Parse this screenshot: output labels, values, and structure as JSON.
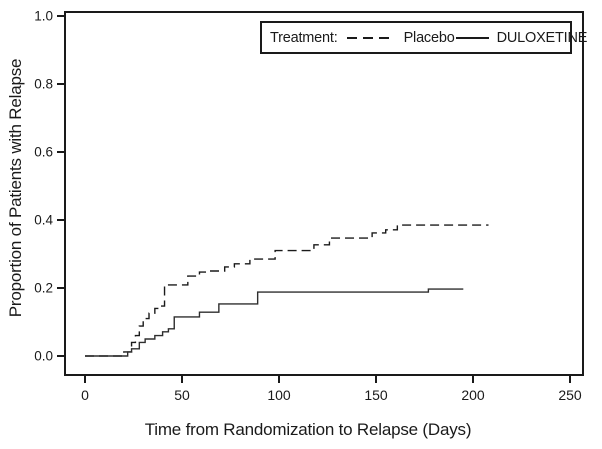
{
  "figure": {
    "background": "#ffffff",
    "axis_color": "#1a1a1a",
    "curve_color": "#222222"
  },
  "chart_data": {
    "type": "line",
    "subtype": "kaplan-meier-step",
    "title": "",
    "xlabel": "Time from Randomization to Relapse (Days)",
    "ylabel": "Proportion of Patients with Relapse",
    "xlim": [
      0,
      250
    ],
    "ylim": [
      0.0,
      1.0
    ],
    "grid": false,
    "xticks": [
      {
        "value": 0,
        "label": "0"
      },
      {
        "value": 50,
        "label": "50"
      },
      {
        "value": 100,
        "label": "100"
      },
      {
        "value": 150,
        "label": "150"
      },
      {
        "value": 200,
        "label": "200"
      },
      {
        "value": 250,
        "label": "250"
      }
    ],
    "yticks": [
      {
        "value": 0.0,
        "label": "0.0"
      },
      {
        "value": 0.2,
        "label": "0.2"
      },
      {
        "value": 0.4,
        "label": "0.4"
      },
      {
        "value": 0.6,
        "label": "0.6"
      },
      {
        "value": 0.8,
        "label": "0.8"
      },
      {
        "value": 1.0,
        "label": "1.0"
      }
    ],
    "legend": {
      "title": "Treatment:",
      "position": "top-right-inside",
      "entries": [
        {
          "name": "Placebo",
          "line_style": "dashed",
          "color": "#1a1a1a"
        },
        {
          "name": "DULOXETINE",
          "line_style": "solid",
          "color": "#1a1a1a"
        }
      ]
    },
    "series": [
      {
        "name": "Placebo",
        "style": "dashed",
        "step": "post",
        "color": "#1a1a1a",
        "points": [
          [
            0,
            0.0
          ],
          [
            20,
            0.012
          ],
          [
            24,
            0.04
          ],
          [
            26,
            0.06
          ],
          [
            28,
            0.088
          ],
          [
            30,
            0.11
          ],
          [
            33,
            0.126
          ],
          [
            36,
            0.14
          ],
          [
            38,
            0.147
          ],
          [
            41,
            0.209
          ],
          [
            53,
            0.235
          ],
          [
            59,
            0.247
          ],
          [
            64,
            0.25
          ],
          [
            72,
            0.262
          ],
          [
            77,
            0.271
          ],
          [
            85,
            0.285
          ],
          [
            98,
            0.31
          ],
          [
            118,
            0.327
          ],
          [
            126,
            0.347
          ],
          [
            148,
            0.362
          ],
          [
            155,
            0.371
          ],
          [
            161,
            0.385
          ],
          [
            208,
            0.385
          ]
        ]
      },
      {
        "name": "DULOXETINE",
        "style": "solid",
        "step": "post",
        "color": "#2e2e2e",
        "points": [
          [
            0,
            0.0
          ],
          [
            22,
            0.012
          ],
          [
            24,
            0.021
          ],
          [
            28,
            0.04
          ],
          [
            31,
            0.05
          ],
          [
            36,
            0.06
          ],
          [
            40,
            0.071
          ],
          [
            43,
            0.08
          ],
          [
            46,
            0.115
          ],
          [
            59,
            0.129
          ],
          [
            69,
            0.153
          ],
          [
            89,
            0.188
          ],
          [
            177,
            0.197
          ],
          [
            195,
            0.197
          ]
        ]
      }
    ]
  }
}
